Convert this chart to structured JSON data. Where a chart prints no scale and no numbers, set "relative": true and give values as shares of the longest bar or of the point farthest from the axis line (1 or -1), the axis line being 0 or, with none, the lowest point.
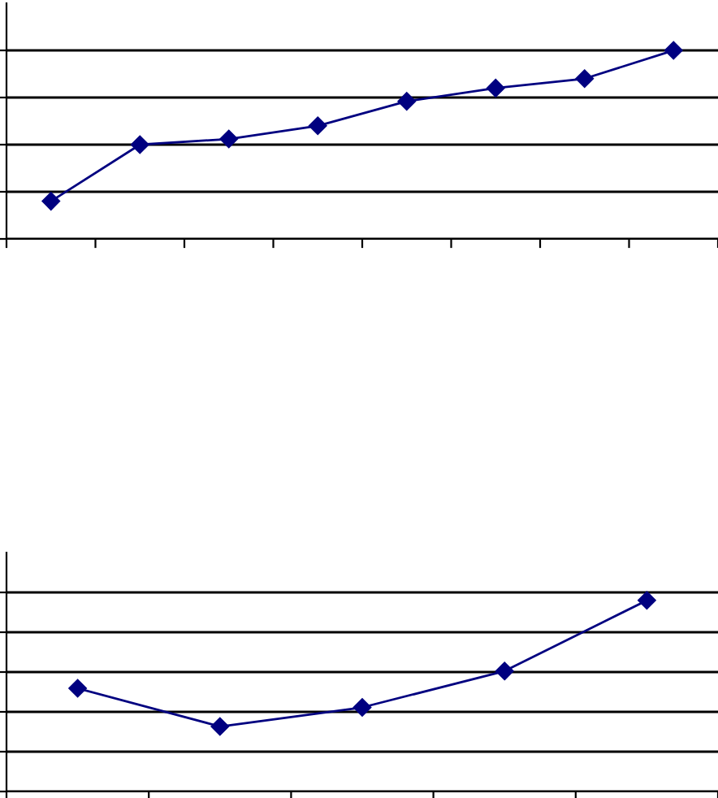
{
  "chart_data": [
    {
      "type": "line",
      "relative": true,
      "categories": [
        null,
        null,
        null,
        null,
        null,
        null,
        null,
        null
      ],
      "series": [
        {
          "color": "#000080",
          "values": [
            0.2,
            0.5,
            0.53,
            0.6,
            0.73,
            0.8,
            0.85,
            1.0
          ]
        }
      ],
      "marker": "diamond",
      "line_style": "solid",
      "grid": "y",
      "tick_labels": false
    },
    {
      "type": "line",
      "relative": true,
      "categories": [
        null,
        null,
        null,
        null,
        null
      ],
      "series": [
        {
          "color": "#000080",
          "values": [
            0.54,
            0.34,
            0.44,
            0.63,
            1.0
          ]
        }
      ],
      "marker": "diamond",
      "line_style": "solid",
      "grid": "y",
      "tick_labels": false
    }
  ]
}
